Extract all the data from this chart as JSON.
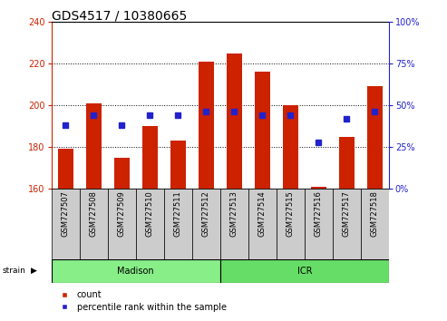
{
  "title": "GDS4517 / 10380665",
  "samples": [
    "GSM727507",
    "GSM727508",
    "GSM727509",
    "GSM727510",
    "GSM727511",
    "GSM727512",
    "GSM727513",
    "GSM727514",
    "GSM727515",
    "GSM727516",
    "GSM727517",
    "GSM727518"
  ],
  "counts": [
    179,
    201,
    175,
    190,
    183,
    221,
    225,
    216,
    200,
    161,
    185,
    209
  ],
  "percentiles": [
    38,
    44,
    38,
    44,
    44,
    46,
    46,
    44,
    44,
    28,
    42,
    46
  ],
  "ylim_left": [
    160,
    240
  ],
  "ylim_right": [
    0,
    100
  ],
  "yticks_left": [
    160,
    180,
    200,
    220,
    240
  ],
  "yticks_right": [
    0,
    25,
    50,
    75,
    100
  ],
  "bar_color": "#cc2200",
  "square_color": "#2222cc",
  "bar_bottom": 160,
  "strain_colors": [
    "#88ee88",
    "#66dd66"
  ],
  "legend_count_label": "count",
  "legend_pct_label": "percentile rank within the sample",
  "title_fontsize": 10,
  "tick_label_fontsize": 6,
  "strain_label_fontsize": 7,
  "legend_fontsize": 7,
  "background_color": "#ffffff",
  "tick_bg": "#cccccc",
  "n_madison": 6,
  "n_icr": 6
}
